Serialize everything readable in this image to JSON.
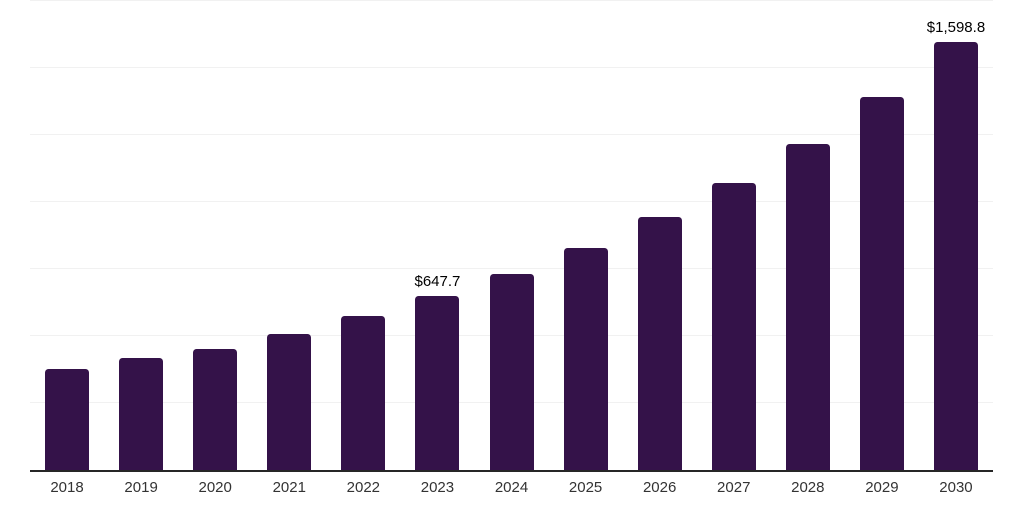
{
  "chart_data": {
    "type": "bar",
    "title": "",
    "xlabel": "",
    "ylabel": "",
    "categories": [
      "2018",
      "2019",
      "2020",
      "2021",
      "2022",
      "2023",
      "2024",
      "2025",
      "2026",
      "2027",
      "2028",
      "2029",
      "2030"
    ],
    "values": [
      377,
      417,
      453,
      507,
      573,
      647.7,
      733,
      830,
      943,
      1072,
      1218,
      1392,
      1598.8
    ],
    "data_labels": {
      "2023": "$647.7",
      "2030": "$1,598.8"
    },
    "ylim": [
      0,
      1750
    ],
    "grid_step": 250,
    "grid": true,
    "legend": false,
    "bar_color": "#341249",
    "gridline_color": "#f1f1f1",
    "axis_line_color": "#262626",
    "tick_label_color": "#333333",
    "data_label_color": "#000000"
  }
}
